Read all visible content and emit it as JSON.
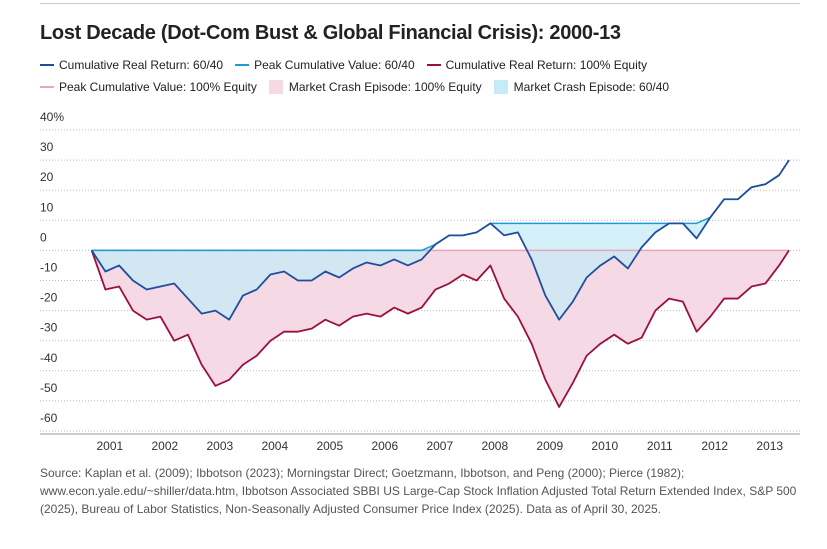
{
  "chart_data": {
    "type": "line",
    "title": "Lost Decade (Dot-Com Bust & Global Financial Crisis): 2000-13",
    "x": [
      2000.67,
      2000.92,
      2001.17,
      2001.42,
      2001.67,
      2001.92,
      2002.17,
      2002.42,
      2002.67,
      2002.92,
      2003.17,
      2003.42,
      2003.67,
      2003.92,
      2004.17,
      2004.42,
      2004.67,
      2004.92,
      2005.17,
      2005.42,
      2005.67,
      2005.92,
      2006.17,
      2006.42,
      2006.67,
      2006.92,
      2007.17,
      2007.42,
      2007.67,
      2007.92,
      2008.17,
      2008.42,
      2008.67,
      2008.92,
      2009.17,
      2009.42,
      2009.67,
      2009.92,
      2010.17,
      2010.42,
      2010.67,
      2010.92,
      2011.17,
      2011.42,
      2011.67,
      2011.92,
      2012.17,
      2012.42,
      2012.67,
      2012.92,
      2013.17,
      2013.35
    ],
    "series": [
      {
        "name": "Cumulative Real Return: 60/40",
        "color": "#1f4e9c",
        "values": [
          0,
          -7,
          -5,
          -10,
          -13,
          -12,
          -11,
          -16,
          -21,
          -20,
          -23,
          -15,
          -13,
          -8,
          -7,
          -10,
          -10,
          -7,
          -9,
          -6,
          -4,
          -5,
          -3,
          -5,
          -3,
          2,
          5,
          5,
          6,
          9,
          5,
          6,
          -3,
          -15,
          -23,
          -17,
          -9,
          -5,
          -2,
          -6,
          1,
          6,
          9,
          9,
          4,
          11,
          17,
          17,
          21,
          22,
          25,
          30
        ]
      },
      {
        "name": "Peak Cumulative Value: 60/40",
        "color": "#1a9bd7",
        "values": [
          0,
          0,
          0,
          0,
          0,
          0,
          0,
          0,
          0,
          0,
          0,
          0,
          0,
          0,
          0,
          0,
          0,
          0,
          0,
          0,
          0,
          0,
          0,
          0,
          0,
          2,
          5,
          5,
          6,
          9,
          9,
          9,
          9,
          9,
          9,
          9,
          9,
          9,
          9,
          9,
          9,
          9,
          9,
          9,
          9,
          11,
          17,
          17,
          21,
          22,
          25,
          30
        ]
      },
      {
        "name": "Cumulative Real Return: 100% Equity",
        "color": "#9b1040",
        "values": [
          0,
          -13,
          -12,
          -20,
          -23,
          -22,
          -30,
          -28,
          -38,
          -45,
          -43,
          -38,
          -35,
          -30,
          -27,
          -27,
          -26,
          -23,
          -25,
          -22,
          -21,
          -22,
          -19,
          -21,
          -19,
          -13,
          -11,
          -8,
          -10,
          -5,
          -16,
          -22,
          -31,
          -43,
          -52,
          -44,
          -35,
          -31,
          -28,
          -31,
          -29,
          -20,
          -16,
          -17,
          -27,
          -22,
          -16,
          -16,
          -12,
          -11,
          -5,
          0
        ]
      },
      {
        "name": "Peak Cumulative Value: 100% Equity",
        "color": "#e8a6bd",
        "values": [
          0,
          0,
          0,
          0,
          0,
          0,
          0,
          0,
          0,
          0,
          0,
          0,
          0,
          0,
          0,
          0,
          0,
          0,
          0,
          0,
          0,
          0,
          0,
          0,
          0,
          0,
          0,
          0,
          0,
          0,
          0,
          0,
          0,
          0,
          0,
          0,
          0,
          0,
          0,
          0,
          0,
          0,
          0,
          0,
          0,
          0,
          0,
          0,
          0,
          0,
          0,
          0
        ]
      }
    ],
    "areas": [
      {
        "name": "Market Crash Episode: 100% Equity",
        "color": "#f5d9e4"
      },
      {
        "name": "Market Crash Episode: 60/40",
        "color": "#c6ebf6"
      }
    ],
    "xlim": [
      1999.73,
      2013.55
    ],
    "xticks": [
      2001,
      2002,
      2003,
      2004,
      2005,
      2006,
      2007,
      2008,
      2009,
      2010,
      2011,
      2012,
      2013
    ],
    "ylim": [
      -61,
      45
    ],
    "yticks": [
      {
        "value": 40,
        "label": "40%"
      },
      30,
      20,
      10,
      0,
      -10,
      -20,
      -30,
      -40,
      -50,
      -60
    ],
    "grid": true,
    "source": "Source: Kaplan et al. (2009); Ibbotson (2023); Morningstar Direct; Goetzmann, Ibbotson, and Peng (2000); Pierce (1982); www.econ.yale.edu/~shiller/data.htm, Ibbotson Associated SBBI US Large-Cap Stock Inflation Adjusted Total Return Extended Index, S&P 500 (2025), Bureau of Labor Statistics, Non-Seasonally Adjusted Consumer Price Index (2025). Data as of April 30, 2025."
  }
}
